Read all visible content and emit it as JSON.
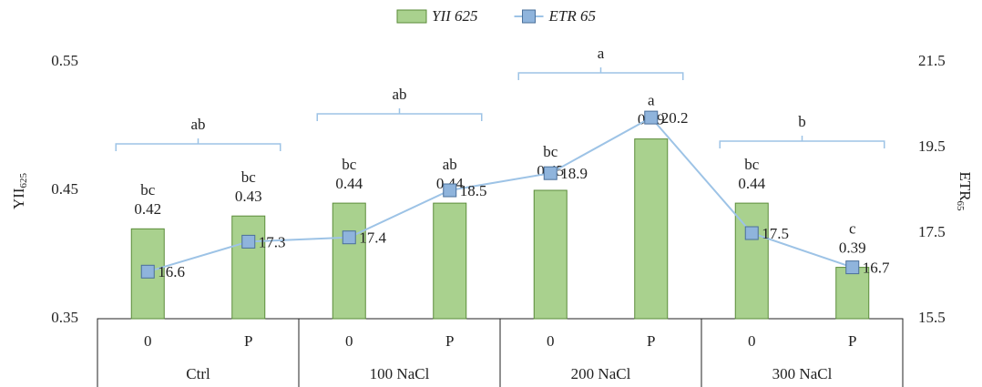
{
  "chart_data": {
    "type": "combo",
    "categories": [
      "0",
      "P",
      "0",
      "P",
      "0",
      "P",
      "0",
      "P"
    ],
    "groups": [
      "Ctrl",
      "100 NaCl",
      "200 NaCl",
      "300 NaCl"
    ],
    "group_letters": [
      "ab",
      "ab",
      "a",
      "b"
    ],
    "y_label": "YII",
    "y_label_sub": "625",
    "y2_label": "ETR",
    "y2_label_sub": "65",
    "ylim": [
      0.35,
      0.55
    ],
    "yticks": [
      0.35,
      0.45,
      0.55
    ],
    "y2lim": [
      15.5,
      21.5
    ],
    "y2ticks": [
      15.5,
      17.5,
      19.5,
      21.5
    ],
    "series": [
      {
        "name": "YII 625",
        "type": "bar",
        "color": "#a9d18e",
        "edge": "#5b8c3a",
        "values": [
          0.42,
          0.43,
          0.44,
          0.44,
          0.45,
          0.49,
          0.44,
          0.39
        ],
        "letters": [
          "bc",
          "bc",
          "bc",
          "ab",
          "bc",
          "a",
          "bc",
          "c"
        ]
      },
      {
        "name": "ETR 65",
        "type": "line",
        "axis": "y2",
        "color": "#9dc3e6",
        "marker": "#8fb4dc",
        "edge": "#4a6f99",
        "values": [
          16.6,
          17.3,
          17.4,
          18.5,
          18.9,
          20.2,
          17.5,
          16.7
        ]
      }
    ]
  }
}
